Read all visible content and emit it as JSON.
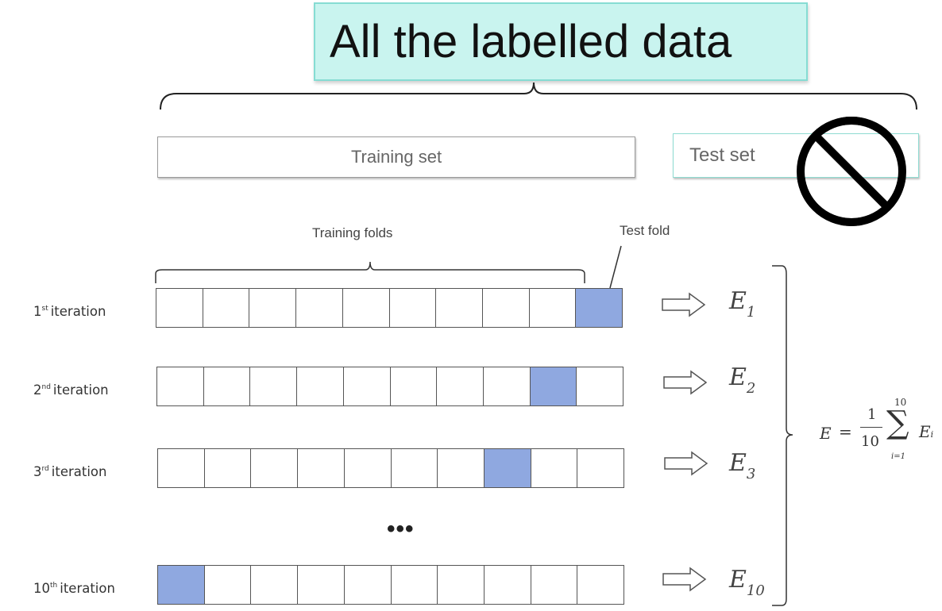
{
  "title": "All the labelled data",
  "training_set_label": "Training set",
  "test_set_label": "Test set",
  "training_folds_label": "Training folds",
  "test_fold_label": "Test fold",
  "fold_count": 10,
  "test_fold_color": "#8fa8e0",
  "iterations": [
    {
      "num": "1",
      "suffix": "st",
      "text": "iteration",
      "test_fold_index": 9,
      "error": "E",
      "error_sub": "1"
    },
    {
      "num": "2",
      "suffix": "nd",
      "text": "iteration",
      "test_fold_index": 8,
      "error": "E",
      "error_sub": "2"
    },
    {
      "num": "3",
      "suffix": "rd",
      "text": "iteration",
      "test_fold_index": 7,
      "error": "E",
      "error_sub": "3"
    },
    {
      "num": "10",
      "suffix": "th",
      "text": "iteration",
      "test_fold_index": 0,
      "error": "E",
      "error_sub": "10"
    }
  ],
  "ellipsis": "•••",
  "formula": {
    "lhs": "E",
    "equals": "=",
    "numerator": "1",
    "denominator": "10",
    "sigma": "∑",
    "upper": "10",
    "lower": "i=1",
    "term": "E",
    "term_sub": "i"
  },
  "prohibited_icon": "no-sign-icon"
}
